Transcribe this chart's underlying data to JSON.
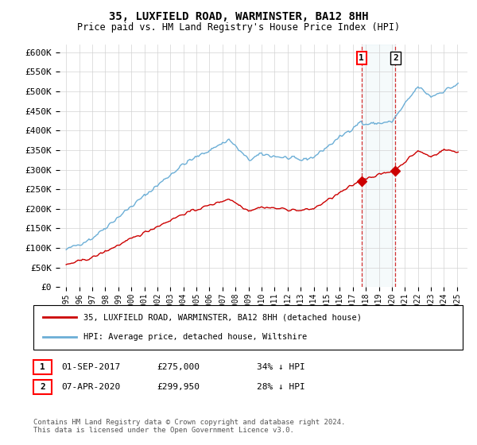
{
  "title": "35, LUXFIELD ROAD, WARMINSTER, BA12 8HH",
  "subtitle": "Price paid vs. HM Land Registry's House Price Index (HPI)",
  "legend_line1": "35, LUXFIELD ROAD, WARMINSTER, BA12 8HH (detached house)",
  "legend_line2": "HPI: Average price, detached house, Wiltshire",
  "footnote": "Contains HM Land Registry data © Crown copyright and database right 2024.\nThis data is licensed under the Open Government Licence v3.0.",
  "sale1_date": "01-SEP-2017",
  "sale1_price": "£275,000",
  "sale1_note": "34% ↓ HPI",
  "sale2_date": "07-APR-2020",
  "sale2_price": "£299,950",
  "sale2_note": "28% ↓ HPI",
  "sale1_year": 2017.67,
  "sale1_value": 275000,
  "sale2_year": 2020.27,
  "sale2_value": 299950,
  "hpi_color": "#6baed6",
  "price_color": "#cc0000",
  "ylim": [
    0,
    620000
  ],
  "yticks": [
    0,
    50000,
    100000,
    150000,
    200000,
    250000,
    300000,
    350000,
    400000,
    450000,
    500000,
    550000,
    600000
  ],
  "xlim_start": 1994.5,
  "xlim_end": 2025.8
}
